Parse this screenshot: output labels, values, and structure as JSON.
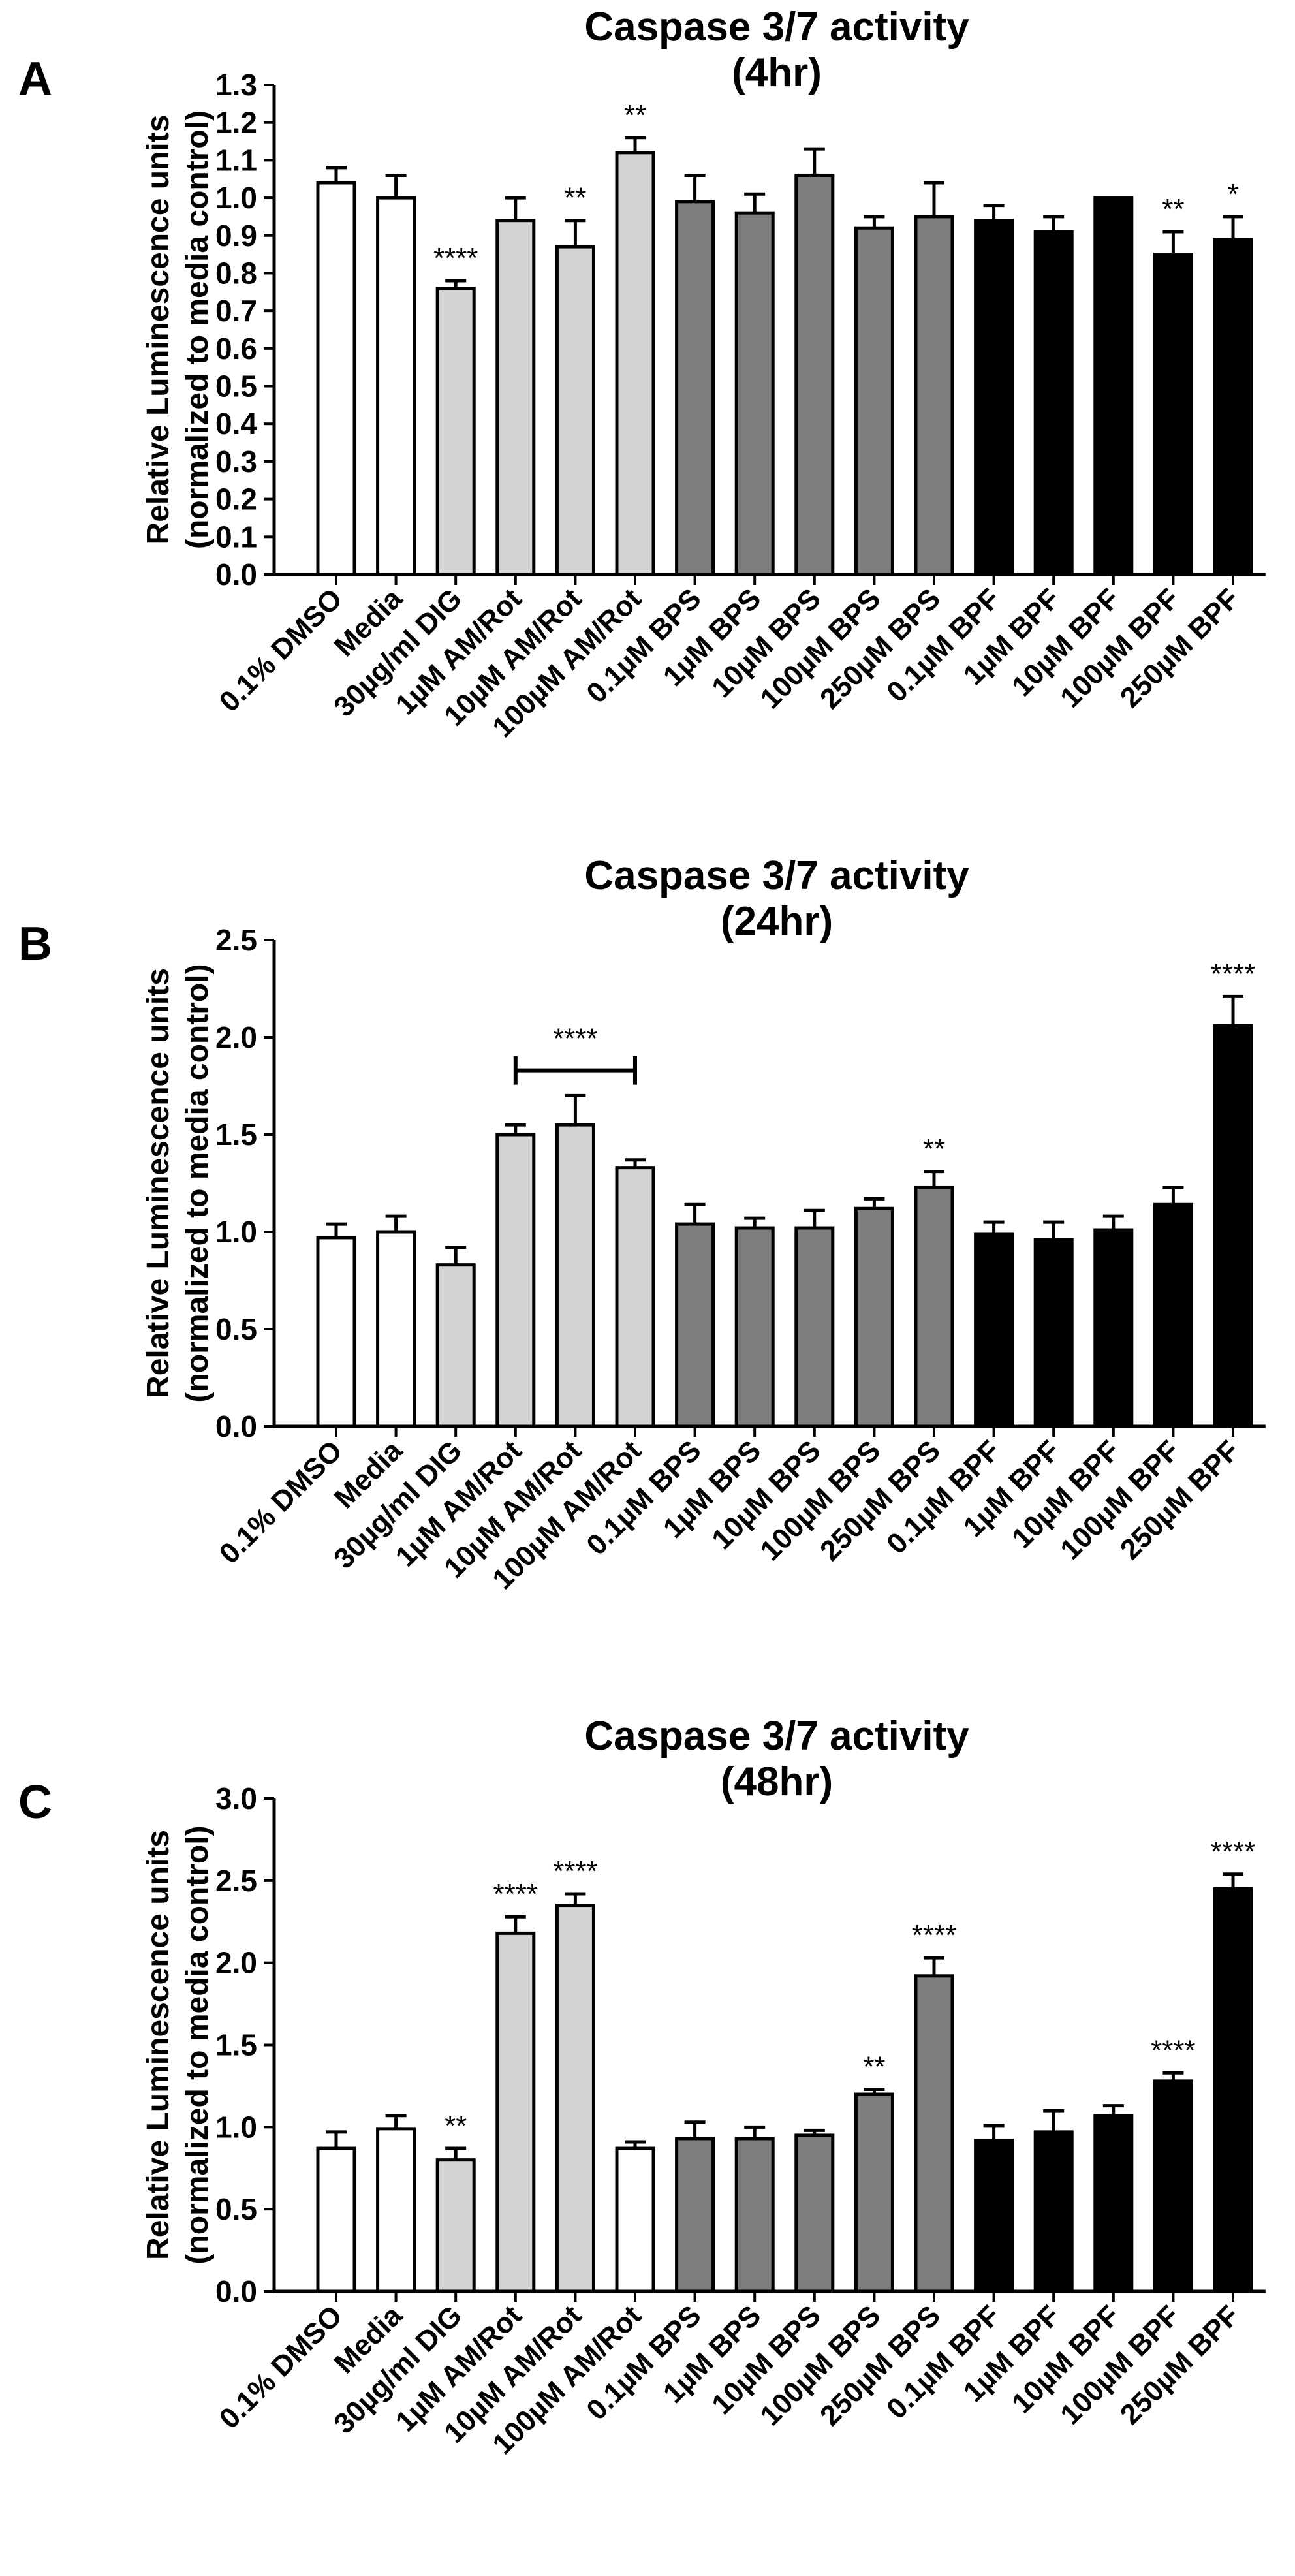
{
  "chart_data": [
    {
      "type": "bar",
      "panel": "A",
      "title": "Caspase 3/7 activity",
      "subtitle": "(4hr)",
      "ylabel": "Relative Luminescence units",
      "ylabel2": "(normalized to media control)",
      "xlabel": "",
      "ylim": [
        0,
        1.3
      ],
      "yticks": [
        "0.0",
        "0.1",
        "0.2",
        "0.3",
        "0.4",
        "0.5",
        "0.6",
        "0.7",
        "0.8",
        "0.9",
        "1.0",
        "1.1",
        "1.2",
        "1.3"
      ],
      "categories": [
        "0.1% DMSO",
        "Media",
        "30µg/ml DIG",
        "1µM AM/Rot",
        "10µM AM/Rot",
        "100µM AM/Rot",
        "0.1µM BPS",
        "1µM BPS",
        "10µM BPS",
        "100µM BPS",
        "250µM BPS",
        "0.1µM BPF",
        "1µM BPF",
        "10µM BPF",
        "100µM BPF",
        "250µM BPF"
      ],
      "values": [
        1.04,
        1.0,
        0.76,
        0.94,
        0.87,
        1.12,
        0.99,
        0.96,
        1.06,
        0.92,
        0.95,
        0.94,
        0.91,
        1.0,
        0.85,
        0.89
      ],
      "errors": [
        0.04,
        0.06,
        0.02,
        0.06,
        0.07,
        0.04,
        0.07,
        0.05,
        0.07,
        0.03,
        0.09,
        0.04,
        0.04,
        0.0,
        0.06,
        0.06
      ],
      "groups": [
        "white",
        "white",
        "light",
        "light",
        "light",
        "light",
        "dark",
        "dark",
        "dark",
        "dark",
        "dark",
        "black",
        "black",
        "black",
        "black",
        "black"
      ],
      "significance": [
        "",
        "",
        "****",
        "",
        "**",
        "**",
        "",
        "",
        "",
        "",
        "",
        "",
        "",
        "",
        "**",
        "*"
      ],
      "bracket": null
    },
    {
      "type": "bar",
      "panel": "B",
      "title": "Caspase 3/7 activity",
      "subtitle": "(24hr)",
      "ylabel": "Relative Luminescence units",
      "ylabel2": "(normalized to media control)",
      "xlabel": "",
      "ylim": [
        0,
        2.5
      ],
      "yticks": [
        "0.0",
        "0.5",
        "1.0",
        "1.5",
        "2.0",
        "2.5"
      ],
      "categories": [
        "0.1% DMSO",
        "Media",
        "30µg/ml DIG",
        "1µM AM/Rot",
        "10µM AM/Rot",
        "100µM AM/Rot",
        "0.1µM BPS",
        "1µM BPS",
        "10µM BPS",
        "100µM BPS",
        "250µM BPS",
        "0.1µM BPF",
        "1µM BPF",
        "10µM BPF",
        "100µM BPF",
        "250µM BPF"
      ],
      "values": [
        0.97,
        1.0,
        0.83,
        1.5,
        1.55,
        1.33,
        1.04,
        1.02,
        1.02,
        1.12,
        1.23,
        0.99,
        0.96,
        1.01,
        1.14,
        2.06
      ],
      "errors": [
        0.07,
        0.08,
        0.09,
        0.05,
        0.15,
        0.04,
        0.1,
        0.05,
        0.09,
        0.05,
        0.08,
        0.06,
        0.09,
        0.07,
        0.09,
        0.15
      ],
      "groups": [
        "white",
        "white",
        "light",
        "light",
        "light",
        "light",
        "dark",
        "dark",
        "dark",
        "dark",
        "dark",
        "black",
        "black",
        "black",
        "black",
        "black"
      ],
      "significance": [
        "",
        "",
        "",
        "",
        "",
        "",
        "",
        "",
        "",
        "",
        "**",
        "",
        "",
        "",
        "",
        "****"
      ],
      "bracket": {
        "from": 3,
        "to": 5,
        "label": "****",
        "y": 1.83
      }
    },
    {
      "type": "bar",
      "panel": "C",
      "title": "Caspase 3/7 activity",
      "subtitle": "(48hr)",
      "ylabel": "Relative Luminescence units",
      "ylabel2": "(normalized to media control)",
      "xlabel": "",
      "ylim": [
        0,
        3.0
      ],
      "yticks": [
        "0.0",
        "0.5",
        "1.0",
        "1.5",
        "2.0",
        "2.5",
        "3.0"
      ],
      "categories": [
        "0.1% DMSO",
        "Media",
        "30µg/ml DIG",
        "1µM AM/Rot",
        "10µM AM/Rot",
        "100µM AM/Rot",
        "0.1µM BPS",
        "1µM BPS",
        "10µM BPS",
        "100µM BPS",
        "250µM BPS",
        "0.1µM BPF",
        "1µM BPF",
        "10µM BPF",
        "100µM BPF",
        "250µM BPF"
      ],
      "values": [
        0.87,
        0.99,
        0.8,
        2.18,
        2.35,
        0.87,
        0.93,
        0.93,
        0.95,
        1.2,
        1.92,
        0.92,
        0.97,
        1.07,
        1.28,
        2.45
      ],
      "errors": [
        0.1,
        0.08,
        0.07,
        0.1,
        0.07,
        0.04,
        0.1,
        0.07,
        0.03,
        0.03,
        0.11,
        0.09,
        0.13,
        0.06,
        0.05,
        0.09
      ],
      "groups": [
        "white",
        "white",
        "light",
        "light",
        "light",
        "white",
        "dark",
        "dark",
        "dark",
        "dark",
        "dark",
        "black",
        "black",
        "black",
        "black",
        "black"
      ],
      "significance": [
        "",
        "",
        "**",
        "****",
        "****",
        "",
        "",
        "",
        "",
        "**",
        "****",
        "",
        "",
        "",
        "****",
        "****"
      ],
      "bracket": null
    }
  ],
  "colors": {
    "white": "#ffffff",
    "light": "#d3d3d3",
    "dark": "#7d7d7d",
    "black": "#000000",
    "stroke": "#000000"
  }
}
